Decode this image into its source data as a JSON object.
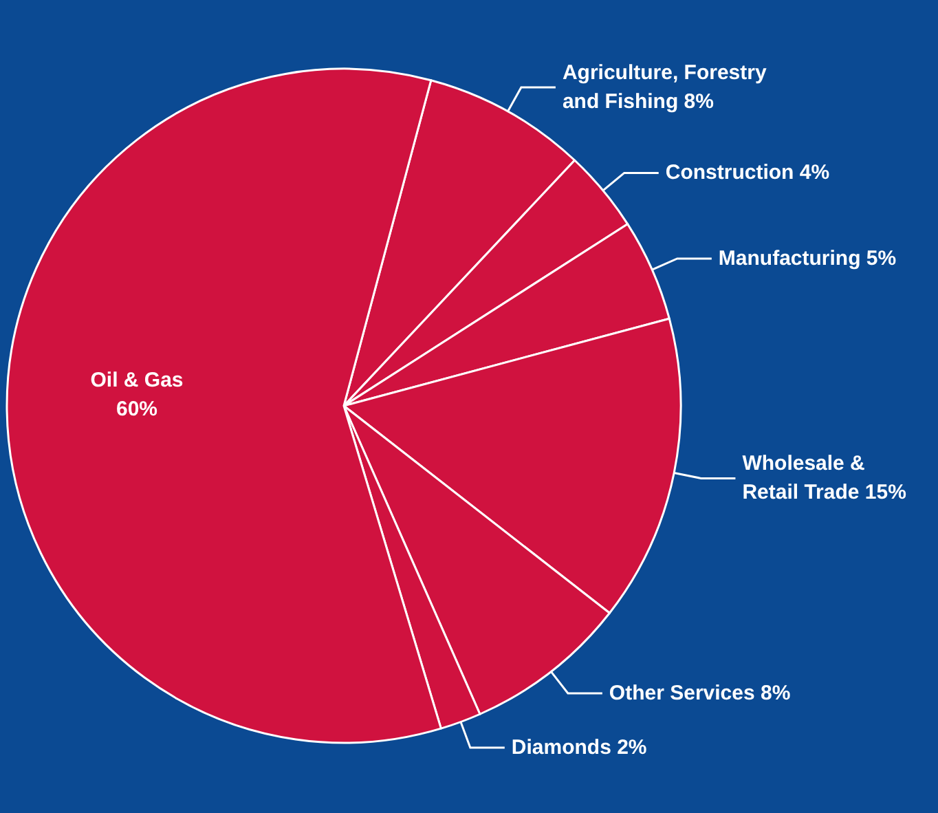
{
  "chart_data": {
    "type": "pie",
    "categories": [
      "Agriculture, Forestry and Fishing",
      "Construction",
      "Manufacturing",
      "Wholesale & Retail Trade",
      "Other Services",
      "Diamonds",
      "Oil & Gas"
    ],
    "values": [
      8,
      4,
      5,
      15,
      8,
      2,
      60
    ],
    "value_labels": [
      "8%",
      "4%",
      "5%",
      "15%",
      "8%",
      "2%",
      "60%"
    ],
    "colors": [
      "#d0123f",
      "#d0123f",
      "#d0123f",
      "#d0123f",
      "#d0123f",
      "#d0123f",
      "#d0123f"
    ]
  }
}
